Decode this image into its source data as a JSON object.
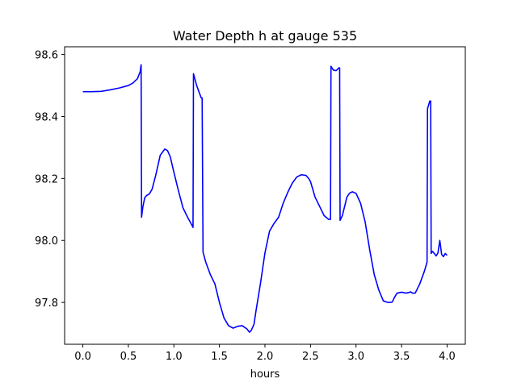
{
  "chart_data": {
    "type": "line",
    "title": "Water Depth h at gauge 535",
    "xlabel": "hours",
    "ylabel": "",
    "xlim": [
      -0.2,
      4.2
    ],
    "ylim": [
      97.665,
      98.625
    ],
    "xticks": [
      0.0,
      0.5,
      1.0,
      1.5,
      2.0,
      2.5,
      3.0,
      3.5,
      4.0
    ],
    "xtick_labels": [
      "0.0",
      "0.5",
      "1.0",
      "1.5",
      "2.0",
      "2.5",
      "3.0",
      "3.5",
      "4.0"
    ],
    "yticks": [
      97.8,
      98.0,
      98.2,
      98.4,
      98.6
    ],
    "ytick_labels": [
      "97.8",
      "98.0",
      "98.2",
      "98.4",
      "98.6"
    ],
    "grid": false,
    "legend": "none",
    "series": [
      {
        "color": "#0000ff",
        "x": [
          0.0,
          0.1,
          0.2,
          0.3,
          0.4,
          0.5,
          0.55,
          0.6,
          0.63,
          0.64,
          0.645,
          0.66,
          0.68,
          0.7,
          0.73,
          0.76,
          0.8,
          0.85,
          0.9,
          0.93,
          0.96,
          1.0,
          1.05,
          1.1,
          1.15,
          1.2,
          1.21,
          1.215,
          1.25,
          1.3,
          1.31,
          1.32,
          1.35,
          1.4,
          1.45,
          1.5,
          1.55,
          1.6,
          1.65,
          1.7,
          1.75,
          1.8,
          1.83,
          1.85,
          1.88,
          1.9,
          1.95,
          2.0,
          2.05,
          2.1,
          2.15,
          2.2,
          2.25,
          2.3,
          2.35,
          2.4,
          2.45,
          2.48,
          2.5,
          2.52,
          2.55,
          2.6,
          2.65,
          2.7,
          2.72,
          2.725,
          2.75,
          2.78,
          2.8,
          2.81,
          2.82,
          2.825,
          2.85,
          2.9,
          2.93,
          2.96,
          3.0,
          3.05,
          3.1,
          3.15,
          3.2,
          3.25,
          3.3,
          3.35,
          3.38,
          3.4,
          3.42,
          3.45,
          3.5,
          3.55,
          3.58,
          3.6,
          3.62,
          3.65,
          3.7,
          3.75,
          3.78,
          3.785,
          3.8,
          3.81,
          3.82,
          3.825,
          3.84,
          3.86,
          3.88,
          3.9,
          3.92,
          3.94,
          3.96,
          3.98,
          4.0
        ],
        "y": [
          98.48,
          98.48,
          98.481,
          98.486,
          98.492,
          98.5,
          98.508,
          98.522,
          98.545,
          98.567,
          98.075,
          98.11,
          98.138,
          98.145,
          98.15,
          98.165,
          98.21,
          98.275,
          98.295,
          98.29,
          98.27,
          98.22,
          98.16,
          98.105,
          98.075,
          98.048,
          98.042,
          98.538,
          98.5,
          98.46,
          98.46,
          97.962,
          97.93,
          97.89,
          97.86,
          97.8,
          97.75,
          97.725,
          97.717,
          97.723,
          97.725,
          97.715,
          97.704,
          97.71,
          97.73,
          97.77,
          97.86,
          97.96,
          98.03,
          98.055,
          98.075,
          98.12,
          98.155,
          98.185,
          98.205,
          98.212,
          98.21,
          98.2,
          98.19,
          98.17,
          98.14,
          98.11,
          98.08,
          98.068,
          98.068,
          98.562,
          98.55,
          98.548,
          98.553,
          98.557,
          98.557,
          98.065,
          98.08,
          98.14,
          98.153,
          98.157,
          98.152,
          98.12,
          98.06,
          97.97,
          97.89,
          97.84,
          97.805,
          97.8,
          97.8,
          97.802,
          97.815,
          97.83,
          97.833,
          97.83,
          97.832,
          97.834,
          97.83,
          97.83,
          97.86,
          97.9,
          97.93,
          98.425,
          98.44,
          98.45,
          98.45,
          97.958,
          97.965,
          97.958,
          97.95,
          97.96,
          98.0,
          97.955,
          97.948,
          97.958,
          97.952
        ]
      }
    ]
  }
}
